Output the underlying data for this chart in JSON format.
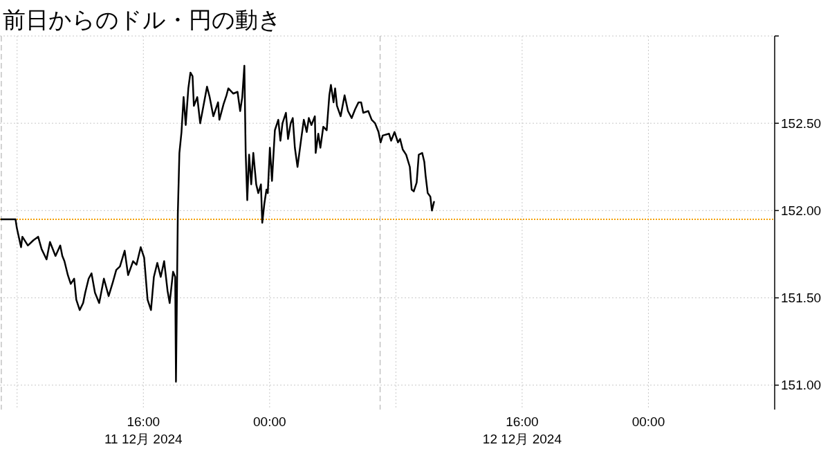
{
  "chart_data": {
    "type": "line",
    "title": "前日からのドル・円の動き",
    "xlim": [
      "2024-12-11T06:55",
      "2024-12-13T08:00"
    ],
    "xticks": [
      {
        "value": "2024-12-11T08:00",
        "label": null
      },
      {
        "value": "2024-12-11T16:00",
        "label": "16:00\n11 12月 2024"
      },
      {
        "value": "2024-12-12T00:00",
        "label": "00:00"
      },
      {
        "value": "2024-12-12T08:00",
        "label": null
      },
      {
        "value": "2024-12-12T16:00",
        "label": "16:00\n12 12月 2024"
      },
      {
        "value": "2024-12-13T00:00",
        "label": "00:00"
      }
    ],
    "ylim": [
      150.86,
      153.0
    ],
    "yticks": [
      {
        "value": 151.0,
        "label": "151.00"
      },
      {
        "value": 151.5,
        "label": "151.50"
      },
      {
        "value": 152.0,
        "label": "152.00"
      },
      {
        "value": 152.5,
        "label": "152.50"
      },
      {
        "value": 153.0,
        "label": null
      }
    ],
    "grid": true,
    "ref_lines": [
      {
        "axis": "y",
        "value": 151.95,
        "color": "#f5a000",
        "line_style": "dotted"
      },
      {
        "axis": "x",
        "value": "2024-12-11T07:00",
        "color": "#b4b4b4",
        "line_style": "dashed"
      },
      {
        "axis": "x",
        "value": "2024-12-12T07:00",
        "color": "#b4b4b4",
        "line_style": "dashed"
      }
    ],
    "color": "#000000",
    "x": [
      "2024-12-11T07:00",
      "2024-12-11T07:54",
      "2024-12-11T07:59",
      "2024-12-11T08:15",
      "2024-12-11T08:20",
      "2024-12-11T08:41",
      "2024-12-11T09:02",
      "2024-12-11T09:20",
      "2024-12-11T09:33",
      "2024-12-11T09:52",
      "2024-12-11T10:05",
      "2024-12-11T10:26",
      "2024-12-11T10:44",
      "2024-12-11T10:52",
      "2024-12-11T11:00",
      "2024-12-11T11:13",
      "2024-12-11T11:24",
      "2024-12-11T11:37",
      "2024-12-11T11:45",
      "2024-12-11T11:58",
      "2024-12-11T12:11",
      "2024-12-11T12:19",
      "2024-12-11T12:32",
      "2024-12-11T12:43",
      "2024-12-11T12:56",
      "2024-12-11T13:12",
      "2024-12-11T13:30",
      "2024-12-11T13:48",
      "2024-12-11T14:04",
      "2024-12-11T14:17",
      "2024-12-11T14:31",
      "2024-12-11T14:49",
      "2024-12-11T15:02",
      "2024-12-11T15:21",
      "2024-12-11T15:34",
      "2024-12-11T15:50",
      "2024-12-11T16:03",
      "2024-12-11T16:16",
      "2024-12-11T16:29",
      "2024-12-11T16:40",
      "2024-12-11T16:53",
      "2024-12-11T17:06",
      "2024-12-11T17:19",
      "2024-12-11T17:32",
      "2024-12-11T17:40",
      "2024-12-11T17:53",
      "2024-12-11T18:01",
      "2024-12-11T18:04",
      "2024-12-11T18:11",
      "2024-12-11T18:17",
      "2024-12-11T18:25",
      "2024-12-11T18:33",
      "2024-12-11T18:41",
      "2024-12-11T18:51",
      "2024-12-11T18:59",
      "2024-12-11T19:07",
      "2024-12-11T19:12",
      "2024-12-11T19:25",
      "2024-12-11T19:36",
      "2024-12-11T19:46",
      "2024-12-11T20:02",
      "2024-12-11T20:12",
      "2024-12-11T20:26",
      "2024-12-11T20:44",
      "2024-12-11T20:49",
      "2024-12-11T21:05",
      "2024-12-11T21:16",
      "2024-12-11T21:23",
      "2024-12-11T21:42",
      "2024-12-11T21:58",
      "2024-12-11T22:08",
      "2024-12-11T22:16",
      "2024-12-11T22:24",
      "2024-12-11T22:29",
      "2024-12-11T22:35",
      "2024-12-11T22:42",
      "2024-12-11T22:50",
      "2024-12-11T22:58",
      "2024-12-11T23:09",
      "2024-12-11T23:17",
      "2024-12-11T23:27",
      "2024-12-11T23:32",
      "2024-12-11T23:40",
      "2024-12-11T23:48",
      "2024-12-11T23:53",
      "2024-12-12T00:01",
      "2024-12-12T00:09",
      "2024-12-12T00:20",
      "2024-12-12T00:33",
      "2024-12-12T00:41",
      "2024-12-12T00:49",
      "2024-12-12T01:02",
      "2024-12-12T01:10",
      "2024-12-12T01:20",
      "2024-12-12T01:28",
      "2024-12-12T01:36",
      "2024-12-12T01:46",
      "2024-12-12T02:00",
      "2024-12-12T02:10",
      "2024-12-12T02:21",
      "2024-12-12T02:29",
      "2024-12-12T02:39",
      "2024-12-12T02:52",
      "2024-12-12T02:55",
      "2024-12-12T03:05",
      "2024-12-12T03:13",
      "2024-12-12T03:24",
      "2024-12-12T03:37",
      "2024-12-12T03:42",
      "2024-12-12T03:47",
      "2024-12-12T03:53",
      "2024-12-12T04:03",
      "2024-12-12T04:09",
      "2024-12-12T04:16",
      "2024-12-12T04:30",
      "2024-12-12T04:45",
      "2024-12-12T04:58",
      "2024-12-12T05:12",
      "2024-12-12T05:25",
      "2024-12-12T05:38",
      "2024-12-12T05:48",
      "2024-12-12T05:56",
      "2024-12-12T06:15",
      "2024-12-12T06:28",
      "2024-12-12T06:41",
      "2024-12-12T06:54",
      "2024-12-12T07:02",
      "2024-12-12T07:10",
      "2024-12-12T07:34",
      "2024-12-12T07:42",
      "2024-12-12T07:55",
      "2024-12-12T08:08",
      "2024-12-12T08:16",
      "2024-12-12T08:26",
      "2024-12-12T08:39",
      "2024-12-12T08:53",
      "2024-12-12T09:00",
      "2024-12-12T09:08",
      "2024-12-12T09:19",
      "2024-12-12T09:27",
      "2024-12-12T09:40",
      "2024-12-12T09:48",
      "2024-12-12T09:53",
      "2024-12-12T10:01",
      "2024-12-12T10:11",
      "2024-12-12T10:17",
      "2024-12-12T10:25"
    ],
    "values": [
      151.95,
      151.95,
      151.9,
      151.79,
      151.85,
      151.8,
      151.83,
      151.85,
      151.78,
      151.72,
      151.82,
      151.74,
      151.8,
      151.74,
      151.71,
      151.63,
      151.58,
      151.61,
      151.49,
      151.43,
      151.47,
      151.53,
      151.61,
      151.64,
      151.53,
      151.47,
      151.61,
      151.51,
      151.59,
      151.66,
      151.68,
      151.77,
      151.63,
      151.71,
      151.69,
      151.79,
      151.73,
      151.49,
      151.43,
      151.62,
      151.7,
      151.62,
      151.71,
      151.54,
      151.47,
      151.65,
      151.62,
      151.02,
      151.98,
      152.33,
      152.45,
      152.65,
      152.49,
      152.7,
      152.79,
      152.77,
      152.6,
      152.65,
      152.5,
      152.58,
      152.71,
      152.65,
      152.54,
      152.62,
      152.52,
      152.61,
      152.66,
      152.7,
      152.67,
      152.68,
      152.57,
      152.65,
      152.83,
      152.33,
      152.06,
      152.32,
      152.15,
      152.33,
      152.15,
      152.1,
      152.15,
      151.93,
      152.04,
      152.12,
      152.1,
      152.36,
      152.17,
      152.46,
      152.52,
      152.4,
      152.5,
      152.56,
      152.41,
      152.5,
      152.53,
      152.36,
      152.25,
      152.41,
      152.52,
      152.45,
      152.53,
      152.49,
      152.54,
      152.33,
      152.44,
      152.36,
      152.48,
      152.46,
      152.56,
      152.66,
      152.72,
      152.62,
      152.7,
      152.6,
      152.54,
      152.66,
      152.57,
      152.53,
      152.58,
      152.62,
      152.62,
      152.56,
      152.57,
      152.52,
      152.5,
      152.45,
      152.39,
      152.43,
      152.44,
      152.4,
      152.45,
      152.39,
      152.41,
      152.35,
      152.32,
      152.25,
      152.12,
      152.11,
      152.16,
      152.32,
      152.33,
      152.28,
      152.2,
      152.1,
      152.08,
      152.0,
      152.05
    ]
  }
}
